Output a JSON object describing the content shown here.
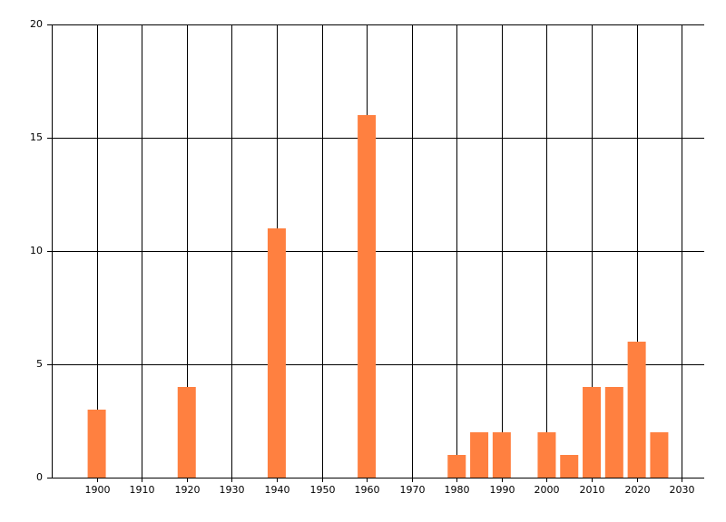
{
  "chart_data": {
    "type": "bar",
    "x": [
      1900,
      1920,
      1940,
      1960,
      1980,
      1985,
      1990,
      2000,
      2005,
      2010,
      2015,
      2020,
      2025
    ],
    "values": [
      3,
      4,
      11,
      16,
      1,
      2,
      2,
      2,
      1,
      4,
      4,
      6,
      2
    ],
    "color": "#ff8040",
    "xlim": [
      1890,
      2035
    ],
    "xticks": [
      1900,
      1910,
      1920,
      1930,
      1940,
      1950,
      1960,
      1970,
      1980,
      1990,
      2000,
      2010,
      2020,
      2030
    ],
    "ylim": [
      0,
      20
    ],
    "yticks": [
      0,
      5,
      10,
      15,
      20
    ],
    "grid": true
  }
}
